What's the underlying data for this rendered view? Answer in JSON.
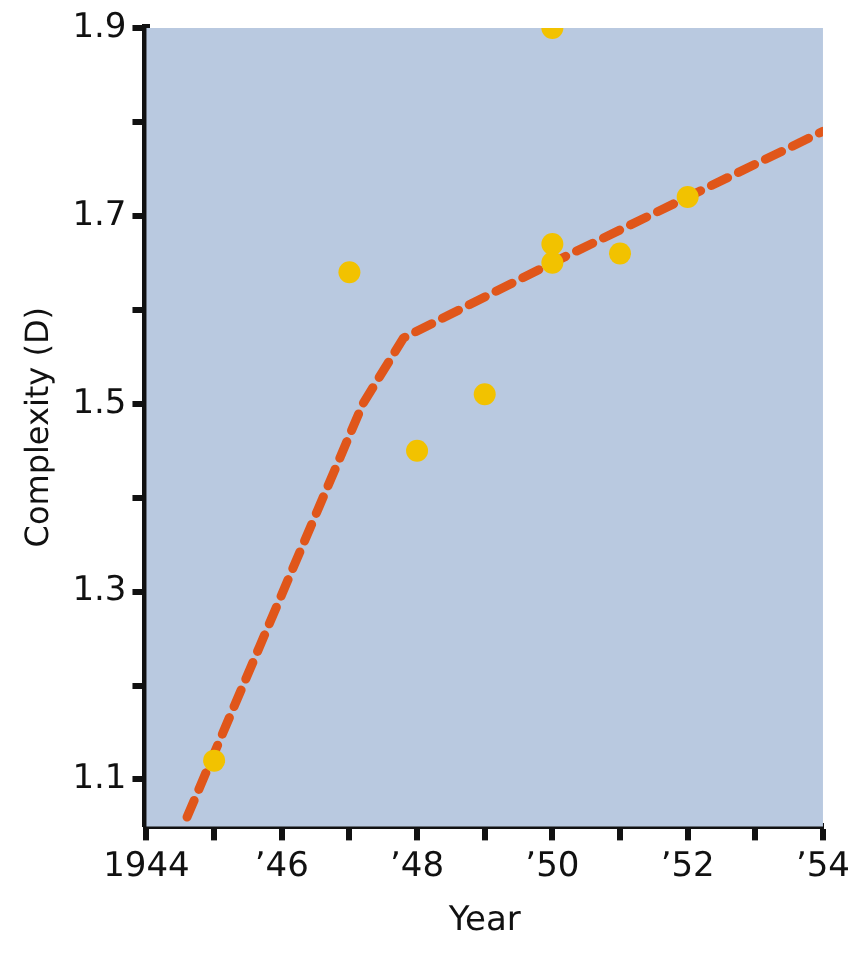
{
  "chart_data": {
    "type": "scatter",
    "xlabel": "Year",
    "ylabel": "Complexity (D)",
    "xlim": [
      1944,
      1954
    ],
    "ylim": [
      1.05,
      1.9
    ],
    "xticks": [
      {
        "value": 1944,
        "label": "1944"
      },
      {
        "value": 1945,
        "label": null
      },
      {
        "value": 1946,
        "label": "’46"
      },
      {
        "value": 1947,
        "label": null
      },
      {
        "value": 1948,
        "label": "’48"
      },
      {
        "value": 1949,
        "label": null
      },
      {
        "value": 1950,
        "label": "’50"
      },
      {
        "value": 1951,
        "label": null
      },
      {
        "value": 1952,
        "label": "’52"
      },
      {
        "value": 1953,
        "label": null
      },
      {
        "value": 1954,
        "label": "’54"
      }
    ],
    "yticks": [
      1.1,
      {
        "value": 1.2,
        "label": null
      },
      1.3,
      {
        "value": 1.4,
        "label": null
      },
      1.5,
      {
        "value": 1.6,
        "label": null
      },
      1.7,
      {
        "value": 1.8,
        "label": null
      },
      1.9
    ],
    "grid": false,
    "legend": false,
    "marker": "circle",
    "series": [
      {
        "color": "#f2c200",
        "x": [
          1945,
          1947,
          1948,
          1949,
          1950,
          1950,
          1950,
          1951,
          1952
        ],
        "values": [
          1.12,
          1.64,
          1.45,
          1.51,
          1.9,
          1.67,
          1.65,
          1.66,
          1.72
        ]
      },
      {
        "type": "line",
        "color": "#e0561a",
        "line_style": "dashed",
        "marker": "none",
        "x": [
          1944.6,
          1947.2,
          1947.8,
          1950,
          1952,
          1954
        ],
        "values": [
          1.06,
          1.5,
          1.57,
          1.65,
          1.72,
          1.79
        ]
      }
    ]
  }
}
